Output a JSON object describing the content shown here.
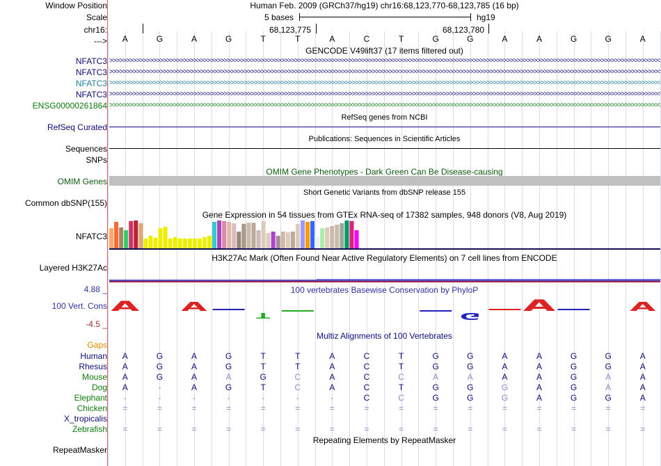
{
  "header": {
    "window_position_label": "Window Position",
    "scale_label": "Scale",
    "chrom_label": "chr16:",
    "strand_label": "--->",
    "assembly_text": "Human Feb. 2009 (GRCh37/hg19)   chr16:68,123,770-68,123,785 (16 bp)",
    "scale_text": "5 bases",
    "scale_db": "hg19",
    "coord_1": "68,123,775",
    "coord_2": "68,123,780"
  },
  "bases": [
    "A",
    "G",
    "A",
    "G",
    "T",
    "T",
    "A",
    "C",
    "T",
    "G",
    "G",
    "A",
    "A",
    "G",
    "G",
    "A"
  ],
  "gencode": {
    "title": "GENCODE V49lift37 (17 items filtered out)",
    "items": [
      {
        "label": "NFATC3",
        "color": "#0c0c78"
      },
      {
        "label": "NFATC3",
        "color": "#0c0c78"
      },
      {
        "label": "NFATC3",
        "color": "#1a7aa0"
      },
      {
        "label": "NFATC3",
        "color": "#0c0c78"
      },
      {
        "label": "ENSG00000261864",
        "color": "#0c7a0c"
      }
    ]
  },
  "refseq": {
    "title": "RefSeq genes from NCBI",
    "label": "RefSeq Curated"
  },
  "publications": {
    "title": "Publications: Sequences in Scientific Articles",
    "label": "Sequences"
  },
  "snps": {
    "label": "SNPs"
  },
  "omim": {
    "title": "OMIM Gene Phenotypes - Dark Green Can Be Disease-causing",
    "label": "OMIM Genes"
  },
  "dbsnp": {
    "title": "Short Genetic Variants from dbSNP release 155",
    "label": "Common dbSNP(155)"
  },
  "gtex": {
    "title": "Gene Expression in 54 tissues from GTEx RNA-seq of 17382 samples, 948 donors (V8, Aug 2019)",
    "label": "NFATC3",
    "bars": [
      {
        "v": 0.72,
        "c": "#ffaa66"
      },
      {
        "v": 0.95,
        "c": "#ff6633"
      },
      {
        "v": 0.75,
        "c": "#aa8866"
      },
      {
        "v": 0.65,
        "c": "#33cc66"
      },
      {
        "v": 0.98,
        "c": "#cc3366"
      },
      {
        "v": 1.0,
        "c": "#bb2233"
      },
      {
        "v": 0.9,
        "c": "#ddaa77"
      },
      {
        "v": 0.35,
        "c": "#eeee00"
      },
      {
        "v": 0.45,
        "c": "#eeee00"
      },
      {
        "v": 0.38,
        "c": "#eeee00"
      },
      {
        "v": 0.72,
        "c": "#eeee00"
      },
      {
        "v": 0.78,
        "c": "#eeee00"
      },
      {
        "v": 0.35,
        "c": "#eeee00"
      },
      {
        "v": 0.4,
        "c": "#eeee00"
      },
      {
        "v": 0.35,
        "c": "#eeee00"
      },
      {
        "v": 0.35,
        "c": "#eeee00"
      },
      {
        "v": 0.35,
        "c": "#eeee00"
      },
      {
        "v": 0.35,
        "c": "#eeee00"
      },
      {
        "v": 0.35,
        "c": "#eeee00"
      },
      {
        "v": 0.4,
        "c": "#eeee00"
      },
      {
        "v": 0.45,
        "c": "#eeee00"
      },
      {
        "v": 0.95,
        "c": "#33cccc"
      },
      {
        "v": 1.0,
        "c": "#aa44bb"
      },
      {
        "v": 0.98,
        "c": "#dd88aa"
      },
      {
        "v": 0.95,
        "c": "#ddbbaa"
      },
      {
        "v": 0.9,
        "c": "#ddbbbb"
      },
      {
        "v": 0.6,
        "c": "#998877"
      },
      {
        "v": 0.88,
        "c": "#aa9988"
      },
      {
        "v": 0.92,
        "c": "#ccbbaa"
      },
      {
        "v": 0.92,
        "c": "#bbaa99"
      },
      {
        "v": 0.65,
        "c": "#ccbbbb"
      },
      {
        "v": 0.98,
        "c": "#ddccbb"
      },
      {
        "v": 0.55,
        "c": "#ddccbb"
      },
      {
        "v": 0.6,
        "c": "#aa44cc"
      },
      {
        "v": 0.45,
        "c": "#aa8899"
      },
      {
        "v": 0.6,
        "c": "#ccbbaa"
      },
      {
        "v": 0.58,
        "c": "#ddccbb"
      },
      {
        "v": 0.6,
        "c": "#bbaa99"
      },
      {
        "v": 0.88,
        "c": "#ddccbb"
      },
      {
        "v": 1.0,
        "c": "#9999ff"
      },
      {
        "v": 0.95,
        "c": "#ff9900"
      },
      {
        "v": 0.98,
        "c": "#3366ff"
      },
      {
        "v": 0.42,
        "c": "#eeeeee"
      },
      {
        "v": 0.72,
        "c": "#aaeeaa"
      },
      {
        "v": 0.75,
        "c": "#ddccbb"
      },
      {
        "v": 0.8,
        "c": "#ccbbaa"
      },
      {
        "v": 0.85,
        "c": "#ccbbaa"
      },
      {
        "v": 0.9,
        "c": "#99aa99"
      },
      {
        "v": 1.0,
        "c": "#009966"
      },
      {
        "v": 0.98,
        "c": "#dd2277"
      },
      {
        "v": 0.65,
        "c": "#ff00ff"
      }
    ]
  },
  "h3k27ac": {
    "title": "H3K27Ac Mark (Often Found Near Active Regulatory Elements) on 7 cell lines from ENCODE",
    "label": "Layered H3K27Ac"
  },
  "phylop": {
    "title": "100 vertebrates Basewise Conservation by PhyloP",
    "label": "100 Vert. Cons",
    "max": "4.88 _",
    "min": "-4.5 _",
    "scores": [
      2.2,
      0,
      2.0,
      0.5,
      -1.2,
      -0.4,
      0,
      0,
      0,
      -0.5,
      -1.5,
      0.3,
      2.5,
      0.3,
      0,
      2.0
    ]
  },
  "multiz": {
    "title": "Multiz Alignments of 100 Vertebrates",
    "gaps_label": "Gaps",
    "species": [
      {
        "name": "Human",
        "seq": [
          "A",
          "G",
          "A",
          "G",
          "T",
          "T",
          "A",
          "C",
          "T",
          "G",
          "G",
          "A",
          "A",
          "G",
          "G",
          "A"
        ],
        "dim": []
      },
      {
        "name": "Rhesus",
        "seq": [
          "A",
          "G",
          "A",
          "G",
          "T",
          "T",
          "A",
          "C",
          "T",
          "G",
          "G",
          "A",
          "A",
          "G",
          "G",
          "A"
        ],
        "dim": []
      },
      {
        "name": "Mouse",
        "seq": [
          "A",
          "G",
          "A",
          "A",
          "G",
          "C",
          "A",
          "C",
          "C",
          "A",
          "A",
          "A",
          "A",
          "G",
          "A",
          "A"
        ],
        "dim": [
          3,
          5,
          8,
          9,
          10,
          14
        ]
      },
      {
        "name": "Dog",
        "seq": [
          "A",
          "-",
          "A",
          "G",
          "T",
          "C",
          "A",
          "C",
          "T",
          "G",
          "G",
          "G",
          "A",
          "G",
          "A",
          "A"
        ],
        "dim": [
          1,
          5,
          11,
          14
        ]
      },
      {
        "name": "Elephant",
        "seq": [
          "-",
          "-",
          "-",
          "-",
          "-",
          "-",
          "-",
          "C",
          "C",
          "G",
          "G",
          "G",
          "A",
          "G",
          "G",
          "A"
        ],
        "dim": [
          0,
          1,
          2,
          3,
          4,
          5,
          6,
          8,
          11
        ]
      },
      {
        "name": "Chicken",
        "seq": [
          "=",
          "=",
          "=",
          "=",
          "=",
          "=",
          "=",
          "=",
          "=",
          "=",
          "=",
          "=",
          "=",
          "=",
          "=",
          "="
        ],
        "dim": [
          0,
          1,
          2,
          3,
          4,
          5,
          6,
          7,
          8,
          9,
          10,
          11,
          12,
          13,
          14,
          15
        ]
      },
      {
        "name": "X_tropicalis",
        "seq": [
          "",
          "",
          "",
          "",
          "",
          "",
          "",
          "",
          "",
          "",
          "",
          "",
          "",
          "",
          "",
          ""
        ],
        "dim": []
      },
      {
        "name": "Zebrafish",
        "seq": [
          "=",
          "=",
          "=",
          "=",
          "=",
          "=",
          "=",
          "=",
          "=",
          "=",
          "=",
          "=",
          "=",
          "=",
          "=",
          "="
        ],
        "dim": [
          0,
          1,
          2,
          3,
          4,
          5,
          6,
          7,
          8,
          9,
          10,
          11,
          12,
          13,
          14,
          15
        ]
      }
    ]
  },
  "repeatmasker": {
    "title": "Repeating Elements by RepeatMasker",
    "label": "RepeatMasker"
  },
  "colors": {
    "label_navy": "#0c0c78",
    "green": "#0c7a0c",
    "phylop_blue": "#3030a0",
    "phylop_red": "#a03030",
    "gaps": "#e08c00",
    "omim_green": "#0c5c0c"
  }
}
